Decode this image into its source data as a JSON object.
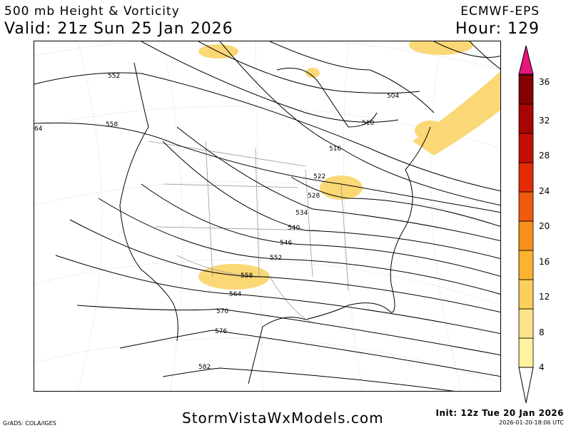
{
  "header": {
    "title": "500 mb Height & Vorticity",
    "valid": "Valid: 21z Sun 25 Jan 2026",
    "model": "ECMWF-EPS",
    "hour": "Hour: 129"
  },
  "footer": {
    "site": "StormVistaWxModels.com",
    "init": "Init: 12z Tue 20 Jan 2026",
    "generated": "2026-01-20-18:06 UTC",
    "credit": "GrADS: COLA/IGES"
  },
  "contour_labels": [
    "552",
    "558",
    "64",
    "504",
    "510",
    "516",
    "522",
    "528",
    "534",
    "540",
    "546",
    "552",
    "558",
    "564",
    "570",
    "576",
    "582"
  ],
  "colorbar": {
    "ticks": [
      "4",
      "8",
      "12",
      "16",
      "20",
      "24",
      "28",
      "32",
      "36"
    ],
    "colors": [
      "#fff3a0",
      "#fde48a",
      "#fbcf5a",
      "#f9b32e",
      "#f7901a",
      "#ef5a0e",
      "#e12c06",
      "#c60f04",
      "#a80404",
      "#850000"
    ],
    "top_arrow_color": "#e8157a"
  },
  "colors": {
    "vorticity_fill": "#fbd876",
    "contour": "#000000",
    "borders": "#9a9a9a"
  }
}
